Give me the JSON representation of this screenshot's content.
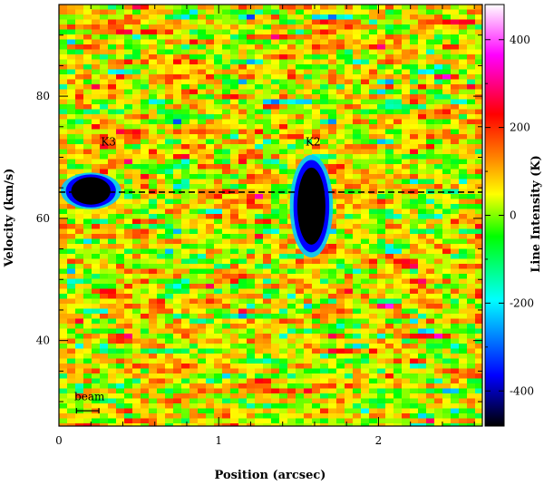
{
  "chart_data": {
    "type": "heatmap",
    "title": "",
    "xlabel": "Position (arcsec)",
    "ylabel": "Velocity (km/s)",
    "colorbar_label": "Line Intensity (K)",
    "xlim": [
      0,
      2.65
    ],
    "ylim": [
      26,
      95
    ],
    "zlim": [
      -480,
      480
    ],
    "x_ticks": [
      0,
      1,
      2
    ],
    "x_tick_labels": [
      "0",
      "1",
      "2"
    ],
    "y_ticks": [
      40,
      60,
      80
    ],
    "y_tick_labels": [
      "40",
      "60",
      "80"
    ],
    "colorbar_ticks": [
      -400,
      -200,
      0,
      200,
      400
    ],
    "colorbar_tick_labels": [
      "-400",
      "-200",
      "0",
      "200",
      "400"
    ],
    "colormap": [
      "#000000",
      "#0000ff",
      "#00ffff",
      "#00ff00",
      "#ffff00",
      "#ff8000",
      "#ff0000",
      "#ff00ff",
      "#ffffff"
    ],
    "reference_line": {
      "y": 64.3,
      "style": "dashed"
    },
    "absorption_features": [
      {
        "label": "K3",
        "x": 0.2,
        "y": 64.5,
        "width": 0.28,
        "height": 5,
        "label_x": 0.31,
        "label_y": 72.5
      },
      {
        "label": "K2",
        "x": 1.58,
        "y": 62,
        "width": 0.2,
        "height": 14,
        "label_x": 1.59,
        "label_y": 72.5
      }
    ],
    "beam": {
      "label": "beam",
      "x_start": 0.11,
      "x_end": 0.25,
      "y": 28.5,
      "label_y": 30.8
    }
  }
}
